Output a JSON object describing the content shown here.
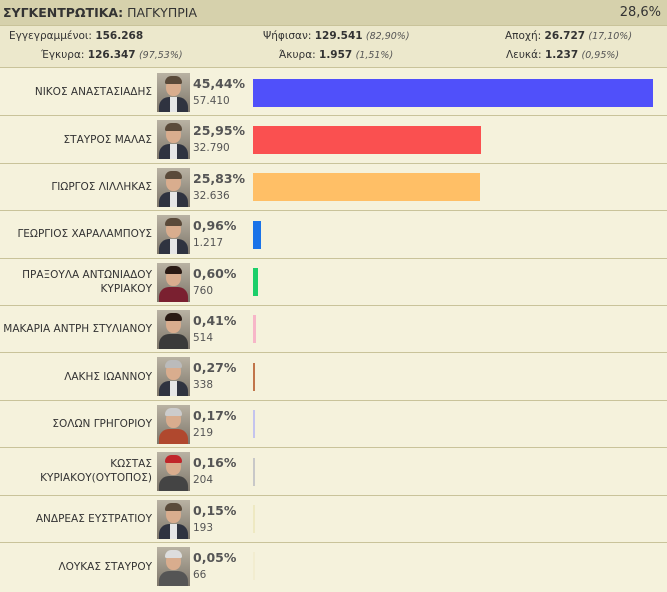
{
  "header": {
    "title_bold": "ΣΥΓΚΕΝΤΡΩΤΙΚΑ:",
    "title_rest": " ΠΑΓΚΥΠΡΙΑ",
    "percent": "28,6%"
  },
  "stats": {
    "registered": {
      "label": "Εγγεγραμμένοι:",
      "value": "156.268"
    },
    "voted": {
      "label": "Ψήφισαν:",
      "value": "129.541",
      "pct": "(82,90%)"
    },
    "abstention": {
      "label": "Αποχή:",
      "value": "26.727",
      "pct": "(17,10%)"
    },
    "valid": {
      "label": "Έγκυρα:",
      "value": "126.347",
      "pct": "(97,53%)"
    },
    "invalid": {
      "label": "Άκυρα:",
      "value": "1.957",
      "pct": "(1,51%)"
    },
    "blank": {
      "label": "Λευκά:",
      "value": "1.237",
      "pct": "(0,95%)"
    }
  },
  "candidates": [
    {
      "name": "ΝΙΚΟΣ ΑΝΑΣΤΑΣΙΑΔΗΣ",
      "pct": "45,44%",
      "votes": "57.410",
      "share": 45.44,
      "color": "#5050fa"
    },
    {
      "name": "ΣΤΑΥΡΟΣ ΜΑΛΑΣ",
      "pct": "25,95%",
      "votes": "32.790",
      "share": 25.95,
      "color": "#fa5050"
    },
    {
      "name": "ΓΙΩΡΓΟΣ ΛΙΛΛΗΚΑΣ",
      "pct": "25,83%",
      "votes": "32.636",
      "share": 25.83,
      "color": "#ffbf66"
    },
    {
      "name": "ΓΕΩΡΓΙΟΣ ΧΑΡΑΛΑΜΠΟΥΣ",
      "pct": "0,96%",
      "votes": "1.217",
      "share": 0.96,
      "color": "#1a73e8"
    },
    {
      "name": "ΠΡΑΞΟΥΛΑ ΑΝΤΩΝΙΑΔΟΥ ΚΥΡΙΑΚΟΥ",
      "pct": "0,60%",
      "votes": "760",
      "share": 0.6,
      "color": "#1ccf6a"
    },
    {
      "name": "ΜΑΚΑΡΙΑ ΑΝΤΡΗ ΣΤΥΛΙΑΝΟΥ",
      "pct": "0,41%",
      "votes": "514",
      "share": 0.41,
      "color": "#f7b6c8"
    },
    {
      "name": "ΛΑΚΗΣ ΙΩΑΝΝΟΥ",
      "pct": "0,27%",
      "votes": "338",
      "share": 0.27,
      "color": "#c1754a"
    },
    {
      "name": "ΣΟΛΩΝ ΓΡΗΓΟΡΙΟΥ",
      "pct": "0,17%",
      "votes": "219",
      "share": 0.17,
      "color": "#c4c4ee"
    },
    {
      "name": "ΚΩΣΤΑΣ ΚΥΡΙΑΚΟΥ(ΟΥΤΟΠΟΣ)",
      "pct": "0,16%",
      "votes": "204",
      "share": 0.16,
      "color": "#c8c8c8"
    },
    {
      "name": "ΑΝΔΡΕΑΣ ΕΥΣΤΡΑΤΙΟΥ",
      "pct": "0,15%",
      "votes": "193",
      "share": 0.15,
      "color": "#eee9c2"
    },
    {
      "name": "ΛΟΥΚΑΣ ΣΤΑΥΡΟΥ",
      "pct": "0,05%",
      "votes": "66",
      "share": 0.05,
      "color": "#f2edd0"
    }
  ]
}
